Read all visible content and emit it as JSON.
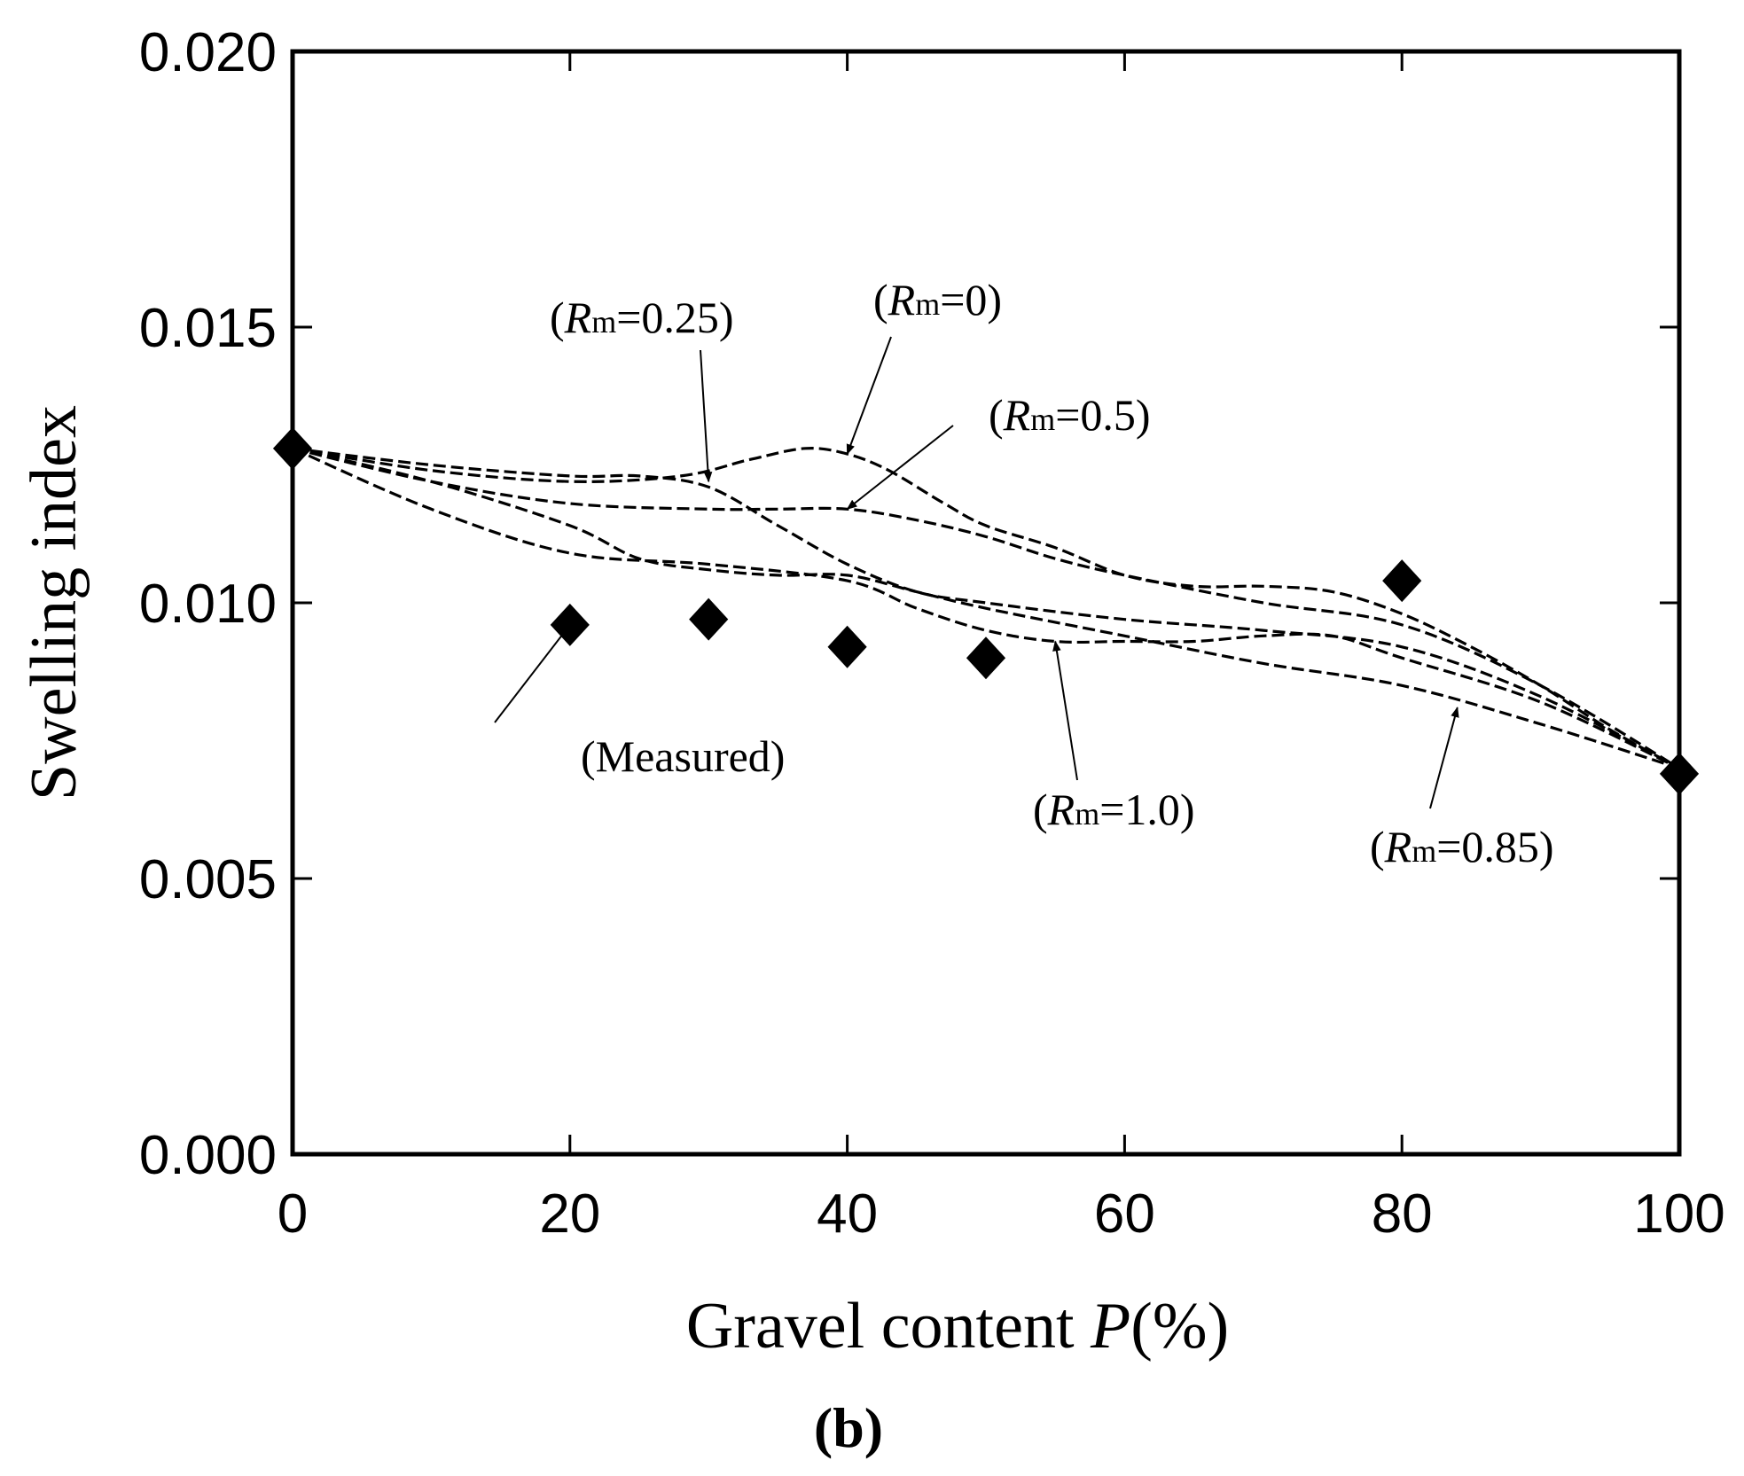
{
  "chart_data": {
    "type": "line",
    "xlabel": "Gravel content P(%)",
    "xlabel_main": "Gravel content ",
    "xlabel_var": "P",
    "xlabel_unit": "(%)",
    "ylabel": "Swelling index",
    "panel_label": "(b)",
    "xlim": [
      0,
      100
    ],
    "ylim": [
      0,
      0.02
    ],
    "x_ticks": [
      0,
      20,
      40,
      60,
      80,
      100
    ],
    "y_ticks": [
      0,
      0.005,
      0.01,
      0.015,
      0.02
    ],
    "x_tick_labels": [
      "0",
      "20",
      "40",
      "60",
      "80",
      "100"
    ],
    "y_tick_labels": [
      "0.000",
      "0.005",
      "0.010",
      "0.015",
      "0.020"
    ],
    "grid": false,
    "series": [
      {
        "name": "(Rm=0)",
        "style": "dashed",
        "x": [
          0,
          10,
          20,
          28,
          33,
          37,
          40,
          43,
          47,
          50,
          55,
          60,
          65,
          70,
          75,
          80,
          85,
          90,
          95,
          100
        ],
        "y": [
          0.0128,
          0.0124,
          0.0122,
          0.0123,
          0.0126,
          0.0128,
          0.0127,
          0.0124,
          0.0118,
          0.0114,
          0.011,
          0.0105,
          0.0103,
          0.0103,
          0.0102,
          0.0098,
          0.0092,
          0.0085,
          0.0077,
          0.007
        ]
      },
      {
        "name": "(Rm=0.25)",
        "style": "dashed",
        "x": [
          0,
          10,
          20,
          25,
          30,
          35,
          40,
          45,
          50,
          60,
          70,
          80,
          90,
          100
        ],
        "y": [
          0.0128,
          0.0125,
          0.0123,
          0.0123,
          0.0121,
          0.0114,
          0.0107,
          0.0102,
          0.01,
          0.0097,
          0.0095,
          0.0092,
          0.0083,
          0.007
        ]
      },
      {
        "name": "(Rm=0.5)",
        "style": "dashed",
        "x": [
          0,
          10,
          20,
          30,
          35,
          40,
          45,
          50,
          55,
          60,
          70,
          80,
          90,
          100
        ],
        "y": [
          0.0128,
          0.0122,
          0.0118,
          0.0117,
          0.0117,
          0.0117,
          0.0115,
          0.0112,
          0.0108,
          0.0105,
          0.01,
          0.0096,
          0.0085,
          0.007
        ]
      },
      {
        "name": "(Rm=0.85)",
        "style": "dashed",
        "x": [
          0,
          10,
          20,
          25,
          30,
          35,
          40,
          45,
          50,
          60,
          70,
          80,
          90,
          100
        ],
        "y": [
          0.0128,
          0.0122,
          0.0114,
          0.0108,
          0.0106,
          0.0105,
          0.0105,
          0.0102,
          0.0099,
          0.0094,
          0.0089,
          0.0085,
          0.0078,
          0.007
        ]
      },
      {
        "name": "(Rm=1.0)",
        "style": "dashed",
        "x": [
          0,
          10,
          20,
          30,
          40,
          45,
          50,
          55,
          60,
          65,
          70,
          75,
          80,
          90,
          100
        ],
        "y": [
          0.0128,
          0.0117,
          0.0109,
          0.0107,
          0.0104,
          0.0099,
          0.0095,
          0.0093,
          0.0093,
          0.0093,
          0.0094,
          0.0094,
          0.009,
          0.0082,
          0.007
        ]
      },
      {
        "name": "(Measured)",
        "style": "markers",
        "marker": "diamond",
        "x": [
          0,
          20,
          30,
          40,
          50,
          80,
          100
        ],
        "y": [
          0.0128,
          0.0096,
          0.0097,
          0.0092,
          0.009,
          0.0104,
          0.0069
        ]
      }
    ],
    "annotations": [
      {
        "pre": "(",
        "var": "R",
        "sub": "m",
        "post": "=0.25)",
        "text": "(Rm=0.25)",
        "series": "(Rm=0.25)",
        "arrow_to": [
          30,
          0.0122
        ]
      },
      {
        "pre": "(",
        "var": "R",
        "sub": "m",
        "post": "=0)",
        "text": "(Rm=0)",
        "series": "(Rm=0)",
        "arrow_to": [
          40,
          0.0127
        ]
      },
      {
        "pre": "(",
        "var": "R",
        "sub": "m",
        "post": "=0.5)",
        "text": "(Rm=0.5)",
        "series": "(Rm=0.5)",
        "arrow_to": [
          40,
          0.0117
        ]
      },
      {
        "pre": "",
        "var": "",
        "sub": "",
        "post": "(Measured)",
        "text": "(Measured)",
        "series": "(Measured)",
        "arrow_to": [
          20,
          0.0096
        ]
      },
      {
        "pre": "(",
        "var": "R",
        "sub": "m",
        "post": "=1.0)",
        "text": "(Rm=1.0)",
        "series": "(Rm=1.0)",
        "arrow_to": [
          55,
          0.0093
        ]
      },
      {
        "pre": "(",
        "var": "R",
        "sub": "m",
        "post": "=0.85)",
        "text": "(Rm=0.85)",
        "series": "(Rm=0.85)",
        "arrow_to": [
          84,
          0.0081
        ]
      }
    ]
  }
}
